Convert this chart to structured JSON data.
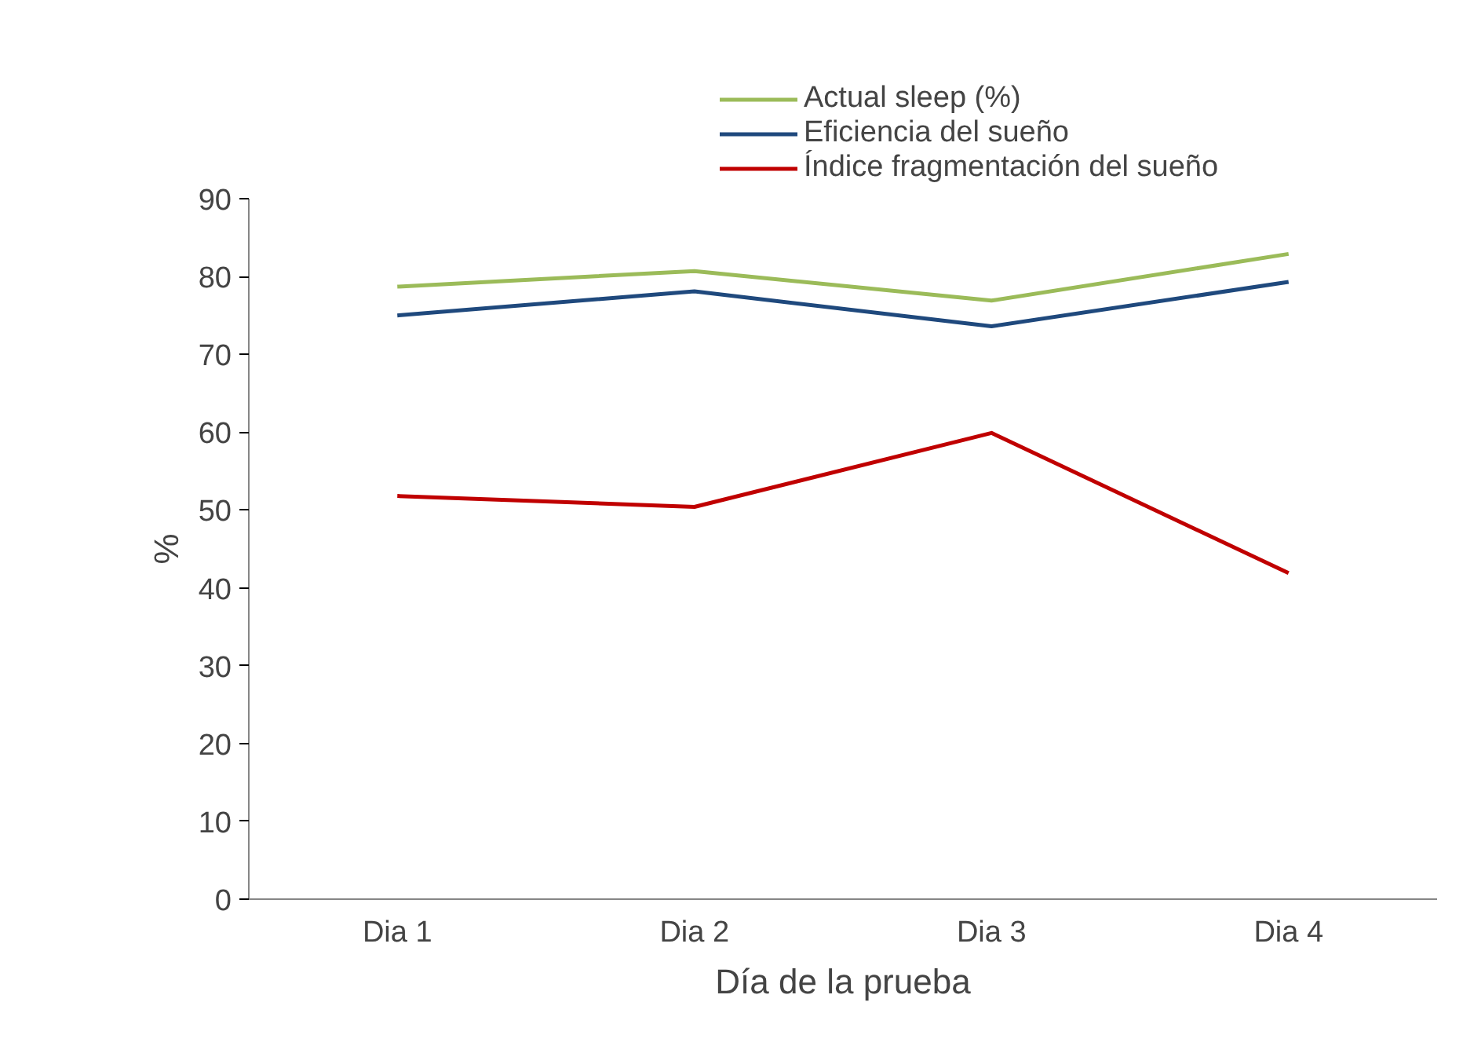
{
  "chart_data": {
    "type": "line",
    "xlabel": "Día de la prueba",
    "ylabel": "%",
    "categories": [
      "Dia 1",
      "Dia 2",
      "Dia 3",
      "Dia 4"
    ],
    "series": [
      {
        "name": "Actual sleep (%)",
        "color": "#9bbb59",
        "values": [
          78.7,
          80.7,
          76.9,
          82.9
        ]
      },
      {
        "name": "Eficiencia del sueño",
        "color": "#1f497d",
        "values": [
          75.0,
          78.1,
          73.6,
          79.3
        ]
      },
      {
        "name": "Índice fragmentación del sueño",
        "color": "#c00000",
        "values": [
          51.8,
          50.4,
          59.9,
          41.9
        ]
      }
    ],
    "ylim": [
      0,
      90
    ],
    "yticks": [
      0,
      10,
      20,
      30,
      40,
      50,
      60,
      70,
      80,
      90
    ],
    "grid": false,
    "legend": "top",
    "marker": "none",
    "line_style": "solid"
  }
}
